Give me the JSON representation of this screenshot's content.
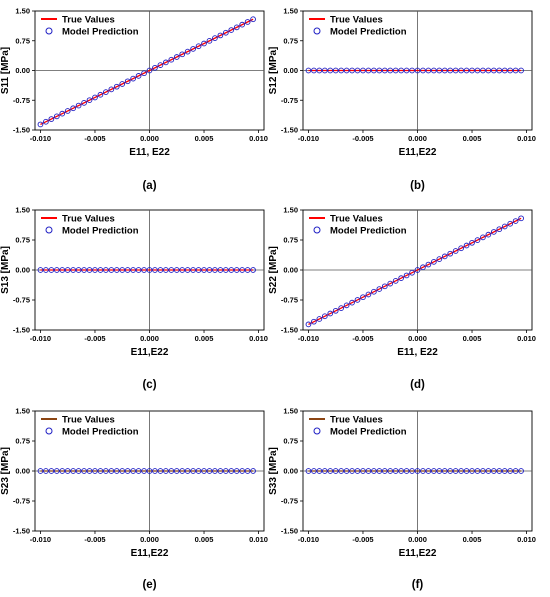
{
  "chart_data": [
    {
      "type": "line",
      "panel_label": "(a)",
      "xlabel": "E11, E22",
      "ylabel": "S11 [MPa]",
      "xlim": [
        -0.0105,
        0.0105
      ],
      "ylim": [
        -1.5,
        1.5
      ],
      "xticks": [
        "-0.010",
        "-0.005",
        "0.000",
        "0.005",
        "0.010"
      ],
      "yticks": [
        "1.50",
        "0.75",
        "0.00",
        "-0.75",
        "-1.50"
      ],
      "legend_position": "top-left",
      "series": [
        {
          "name": "True Values",
          "style": "line",
          "color": "#ff0000",
          "slope": 136,
          "x_range": [
            -0.01,
            0.0095
          ]
        },
        {
          "name": "Model Prediction",
          "style": "marker",
          "marker": "circle",
          "color": "#1f1fc4",
          "slope": 136,
          "x_range": [
            -0.01,
            0.0095
          ],
          "count": 40
        }
      ]
    },
    {
      "type": "line",
      "panel_label": "(b)",
      "xlabel": "E11,E22",
      "ylabel": "S12 [MPa]",
      "xlim": [
        -0.0105,
        0.0105
      ],
      "ylim": [
        -1.5,
        1.5
      ],
      "xticks": [
        "-0.010",
        "-0.005",
        "0.000",
        "0.005",
        "0.010"
      ],
      "yticks": [
        "1.50",
        "0.75",
        "0.00",
        "-0.75",
        "-1.50"
      ],
      "legend_position": "top-left",
      "series": [
        {
          "name": "True Values",
          "style": "line",
          "color": "#ff0000",
          "slope": 0,
          "x_range": [
            -0.01,
            0.0095
          ]
        },
        {
          "name": "Model Prediction",
          "style": "marker",
          "marker": "circle",
          "color": "#1f1fc4",
          "slope": 0,
          "x_range": [
            -0.01,
            0.0095
          ],
          "count": 40
        }
      ]
    },
    {
      "type": "line",
      "panel_label": "(c)",
      "xlabel": "E11,E22",
      "ylabel": "S13 [MPa]",
      "xlim": [
        -0.0105,
        0.0105
      ],
      "ylim": [
        -1.5,
        1.5
      ],
      "xticks": [
        "-0.010",
        "-0.005",
        "0.000",
        "0.005",
        "0.010"
      ],
      "yticks": [
        "1.50",
        "0.75",
        "0.00",
        "-0.75",
        "-1.50"
      ],
      "legend_position": "top-left",
      "series": [
        {
          "name": "True Values",
          "style": "line",
          "color": "#ff0000",
          "slope": 0,
          "x_range": [
            -0.01,
            0.0095
          ]
        },
        {
          "name": "Model Prediction",
          "style": "marker",
          "marker": "circle",
          "color": "#1f1fc4",
          "slope": 0,
          "x_range": [
            -0.01,
            0.0095
          ],
          "count": 40
        }
      ]
    },
    {
      "type": "line",
      "panel_label": "(d)",
      "xlabel": "E11, E22",
      "ylabel": "S22 [MPa]",
      "xlim": [
        -0.0105,
        0.0105
      ],
      "ylim": [
        -1.5,
        1.5
      ],
      "xticks": [
        "-0.010",
        "-0.005",
        "0.000",
        "0.005",
        "0.010"
      ],
      "yticks": [
        "1.50",
        "0.75",
        "0.00",
        "-0.75",
        "-1.50"
      ],
      "legend_position": "top-left",
      "series": [
        {
          "name": "True Values",
          "style": "line",
          "color": "#ff0000",
          "slope": 136,
          "x_range": [
            -0.01,
            0.0095
          ]
        },
        {
          "name": "Model Prediction",
          "style": "marker",
          "marker": "circle",
          "color": "#1f1fc4",
          "slope": 136,
          "x_range": [
            -0.01,
            0.0095
          ],
          "count": 40
        }
      ]
    },
    {
      "type": "line",
      "panel_label": "(e)",
      "xlabel": "E11,E22",
      "ylabel": "S23 [MPa]",
      "xlim": [
        -0.0105,
        0.0105
      ],
      "ylim": [
        -1.5,
        1.5
      ],
      "xticks": [
        "-0.010",
        "-0.005",
        "0.000",
        "0.005",
        "0.010"
      ],
      "yticks": [
        "1.50",
        "0.75",
        "0.00",
        "-0.75",
        "-1.50"
      ],
      "legend_position": "top-left",
      "series": [
        {
          "name": "True Values",
          "style": "line",
          "color": "#8b4513",
          "slope": 0,
          "x_range": [
            -0.01,
            0.0095
          ]
        },
        {
          "name": "Model Prediction",
          "style": "marker",
          "marker": "circle",
          "color": "#1f1fc4",
          "slope": 0,
          "x_range": [
            -0.01,
            0.0095
          ],
          "count": 40
        }
      ]
    },
    {
      "type": "line",
      "panel_label": "(f)",
      "xlabel": "E11,E22",
      "ylabel": "S33 [MPa]",
      "xlim": [
        -0.0105,
        0.0105
      ],
      "ylim": [
        -1.5,
        1.5
      ],
      "xticks": [
        "-0.010",
        "-0.005",
        "0.000",
        "0.005",
        "0.010"
      ],
      "yticks": [
        "1.50",
        "0.75",
        "0.00",
        "-0.75",
        "-1.50"
      ],
      "legend_position": "top-left",
      "series": [
        {
          "name": "True Values",
          "style": "line",
          "color": "#8b4513",
          "slope": 0,
          "x_range": [
            -0.01,
            0.0095
          ]
        },
        {
          "name": "Model Prediction",
          "style": "marker",
          "marker": "circle",
          "color": "#1f1fc4",
          "slope": 0,
          "x_range": [
            -0.01,
            0.0095
          ],
          "count": 40
        }
      ]
    }
  ]
}
